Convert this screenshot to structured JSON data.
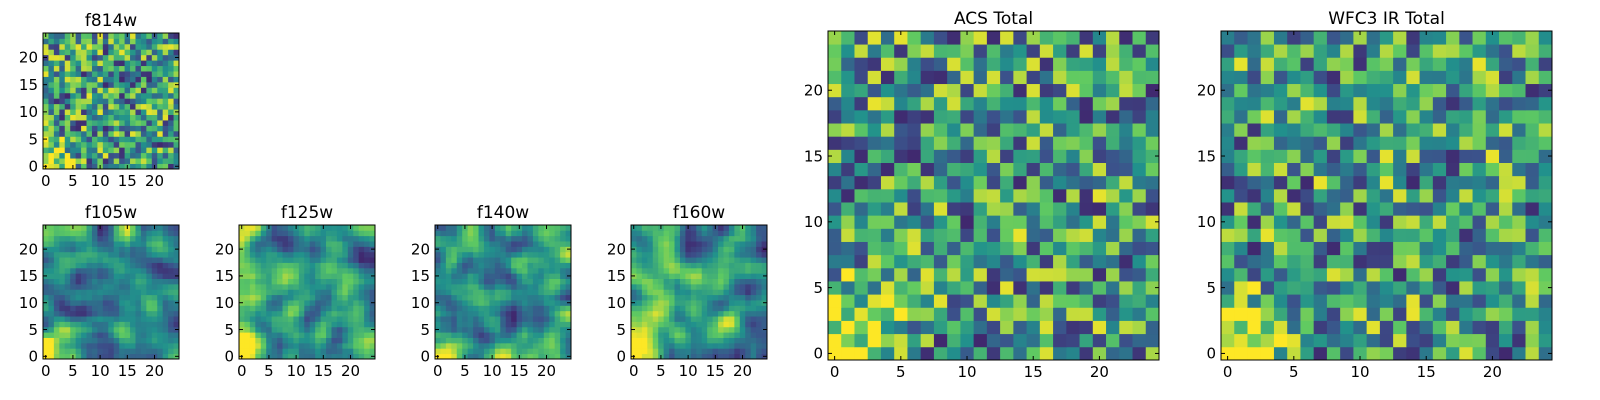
{
  "figure": {
    "type": "heatmap",
    "colormap": "viridis",
    "colormap_stops": [
      "#440154",
      "#3b528b",
      "#21918c",
      "#5ec962",
      "#fde725"
    ]
  },
  "chart_data": [
    {
      "type": "heatmap",
      "title": "f814w",
      "grid": [
        25,
        25
      ],
      "xlim": [
        0,
        24
      ],
      "ylim": [
        0,
        24
      ],
      "xticks": [
        "0",
        "5",
        "10",
        "15",
        "20"
      ],
      "yticks": [
        "0",
        "5",
        "10",
        "15",
        "20"
      ],
      "value_range": [
        0,
        1
      ],
      "pattern": "noise-bright-bottom-left",
      "seed": 11
    },
    {
      "type": "heatmap",
      "title": "f105w",
      "grid": [
        25,
        25
      ],
      "xlim": [
        0,
        24
      ],
      "ylim": [
        0,
        24
      ],
      "xticks": [
        "0",
        "5",
        "10",
        "15",
        "20"
      ],
      "yticks": [
        "0",
        "5",
        "10",
        "15",
        "20"
      ],
      "value_range": [
        0,
        1
      ],
      "pattern": "smooth-bright-bottom-left",
      "seed": 23
    },
    {
      "type": "heatmap",
      "title": "f125w",
      "grid": [
        25,
        25
      ],
      "xlim": [
        0,
        24
      ],
      "ylim": [
        0,
        24
      ],
      "xticks": [
        "0",
        "5",
        "10",
        "15",
        "20"
      ],
      "yticks": [
        "0",
        "5",
        "10",
        "15",
        "20"
      ],
      "value_range": [
        0,
        1
      ],
      "pattern": "smooth-bright-bottom-left",
      "seed": 37
    },
    {
      "type": "heatmap",
      "title": "f140w",
      "grid": [
        25,
        25
      ],
      "xlim": [
        0,
        24
      ],
      "ylim": [
        0,
        24
      ],
      "xticks": [
        "0",
        "5",
        "10",
        "15",
        "20"
      ],
      "yticks": [
        "0",
        "5",
        "10",
        "15",
        "20"
      ],
      "value_range": [
        0,
        1
      ],
      "pattern": "smooth-bright-bottom-left",
      "seed": 41
    },
    {
      "type": "heatmap",
      "title": "f160w",
      "grid": [
        25,
        25
      ],
      "xlim": [
        0,
        24
      ],
      "ylim": [
        0,
        24
      ],
      "xticks": [
        "0",
        "5",
        "10",
        "15",
        "20"
      ],
      "yticks": [
        "0",
        "5",
        "10",
        "15",
        "20"
      ],
      "value_range": [
        0,
        1
      ],
      "pattern": "smooth-bright-bottom-left",
      "seed": 53
    },
    {
      "type": "heatmap",
      "title": "ACS Total",
      "grid": [
        25,
        25
      ],
      "xlim": [
        0,
        24
      ],
      "ylim": [
        0,
        24
      ],
      "xticks": [
        "0",
        "5",
        "10",
        "15",
        "20"
      ],
      "yticks": [
        "0",
        "5",
        "10",
        "15",
        "20"
      ],
      "value_range": [
        0,
        1
      ],
      "pattern": "noise-bright-bottom-left",
      "seed": 67
    },
    {
      "type": "heatmap",
      "title": "WFC3 IR Total",
      "grid": [
        25,
        25
      ],
      "xlim": [
        0,
        24
      ],
      "ylim": [
        0,
        24
      ],
      "xticks": [
        "0",
        "5",
        "10",
        "15",
        "20"
      ],
      "yticks": [
        "0",
        "5",
        "10",
        "15",
        "20"
      ],
      "value_range": [
        0,
        1
      ],
      "pattern": "noise-bright-bottom-left",
      "seed": 79
    }
  ]
}
